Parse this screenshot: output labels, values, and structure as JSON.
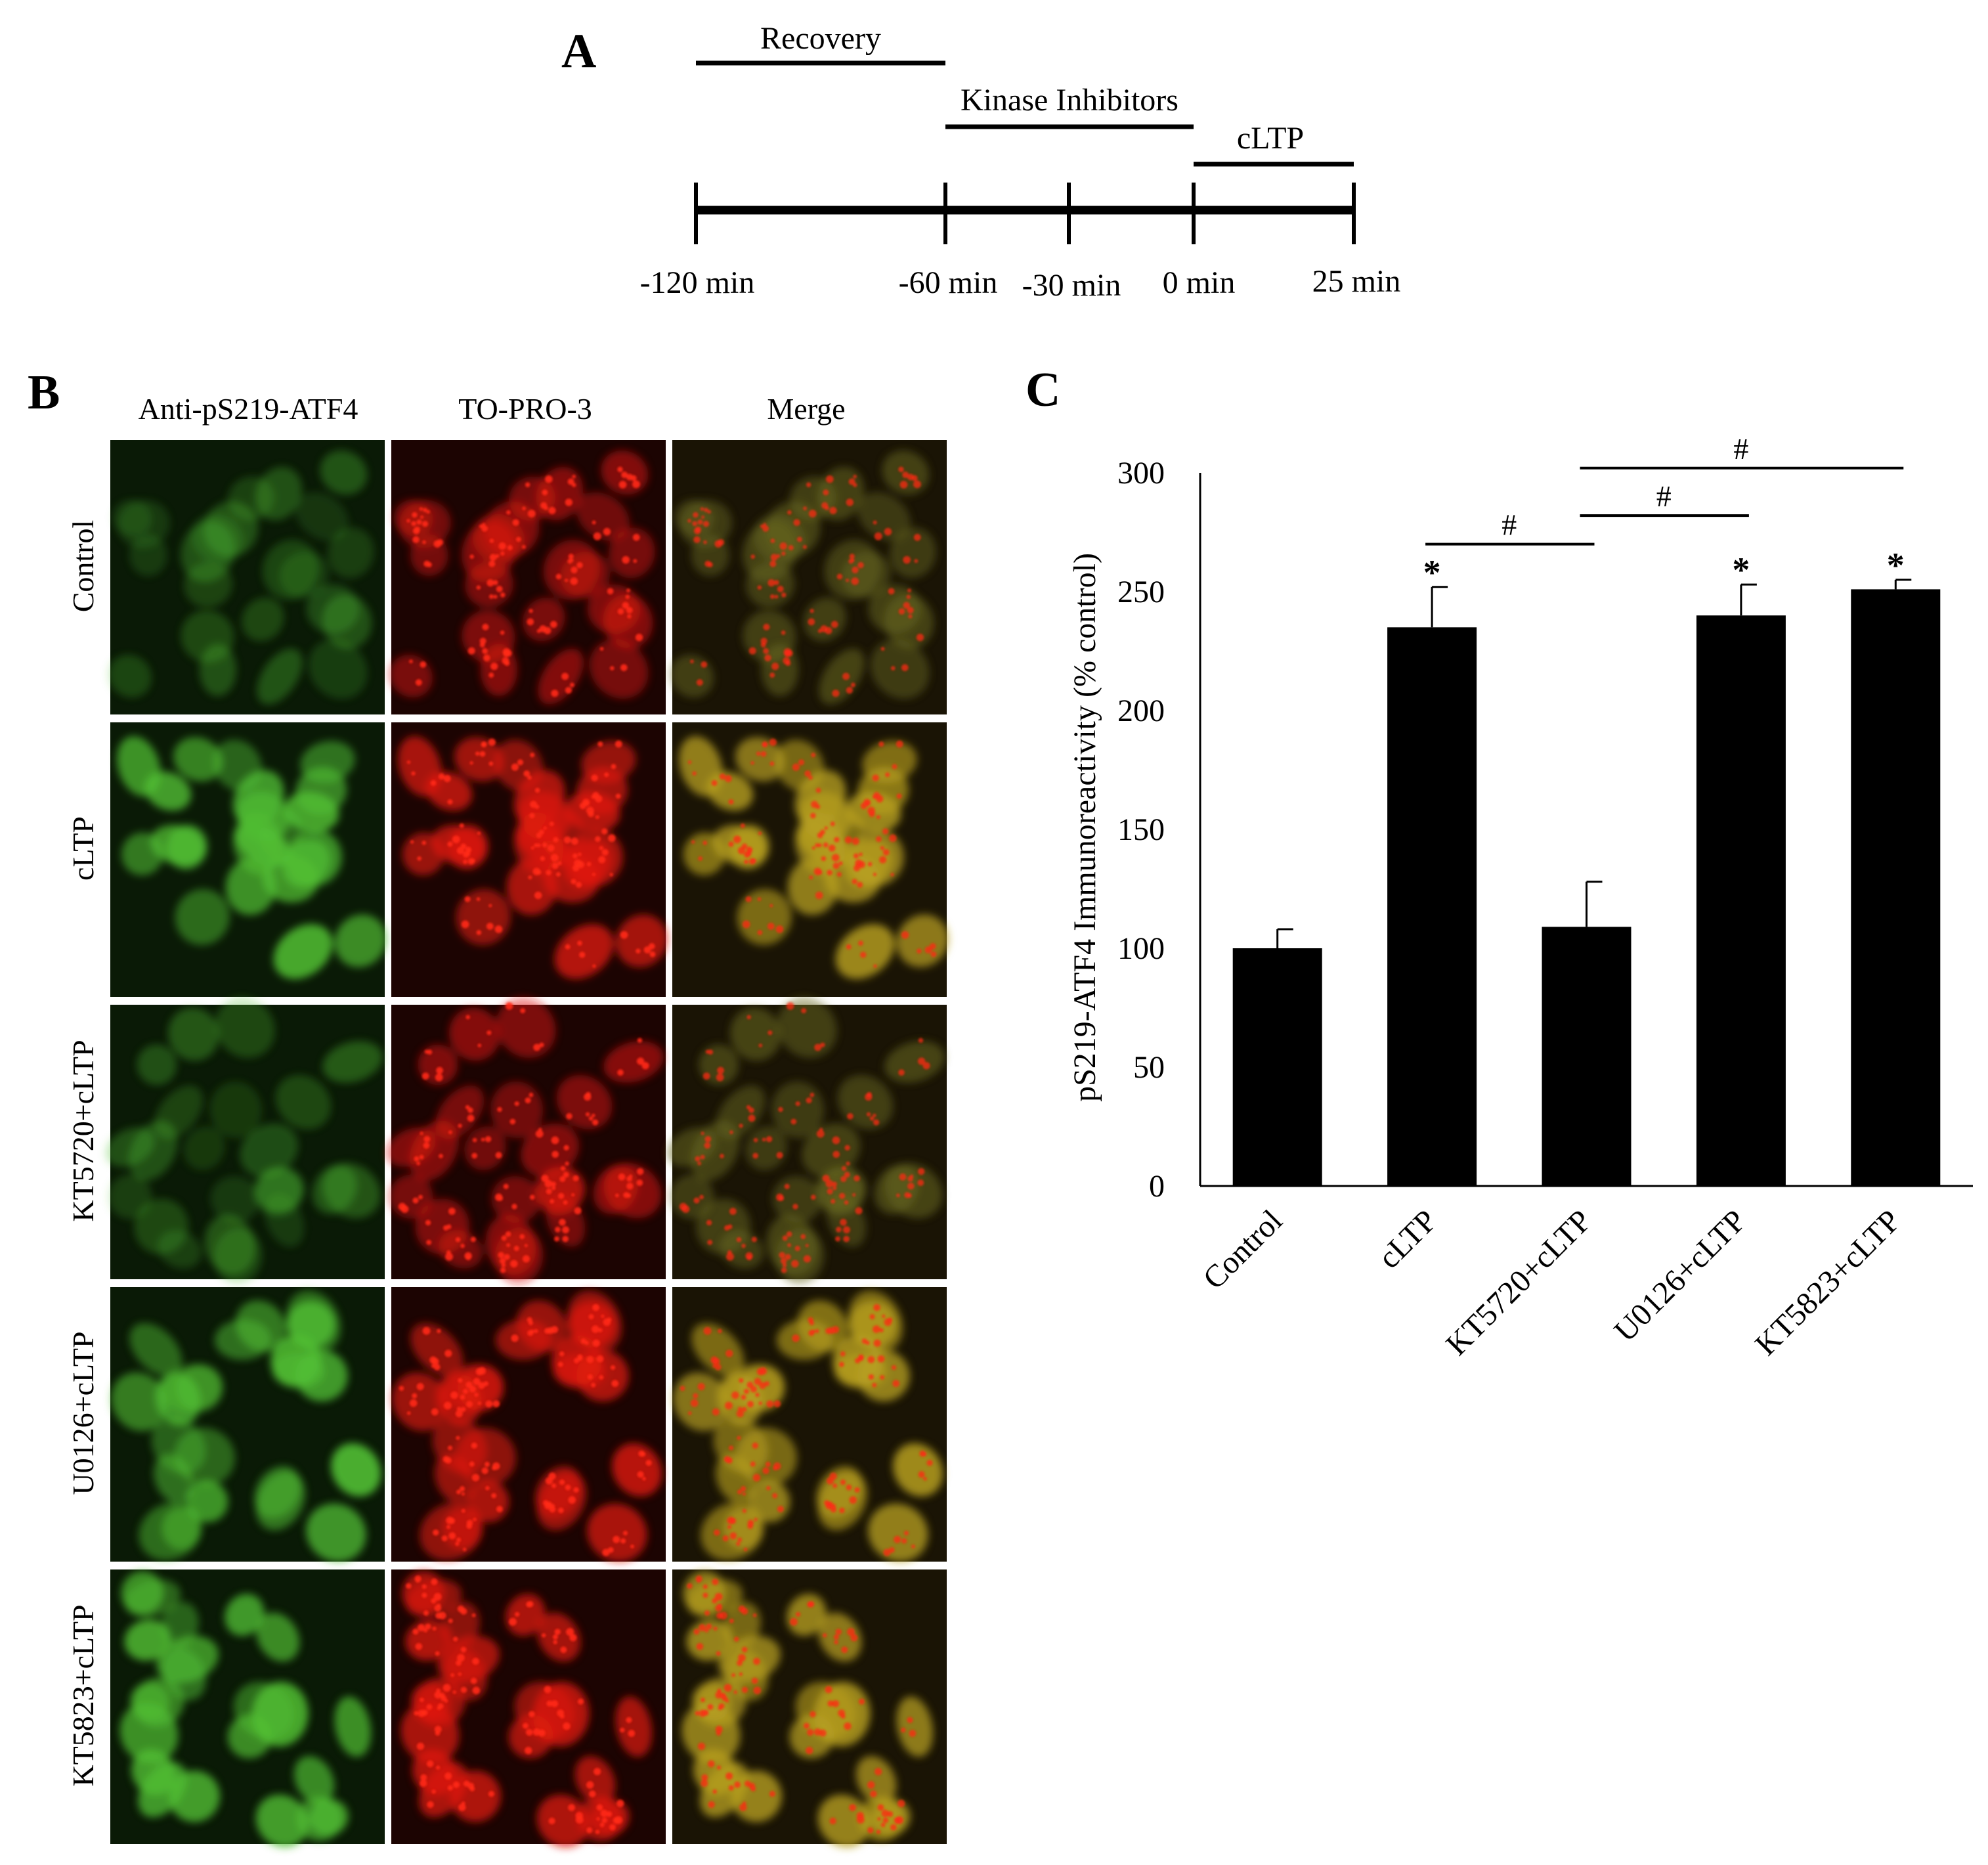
{
  "panel_a": {
    "letter": "A",
    "phases": [
      {
        "label": "Recovery"
      },
      {
        "label": "Kinase Inhibitors"
      },
      {
        "label": "cLTP"
      }
    ],
    "timepoints": [
      "-120 min",
      "-60 min",
      "-30 min",
      "0 min",
      "25 min"
    ]
  },
  "panel_b": {
    "letter": "B",
    "columns": [
      "Anti-pS219-ATF4",
      "TO-PRO-3",
      "Merge"
    ],
    "rows": [
      "Control",
      "cLTP",
      "KT5720+cLTP",
      "U0126+cLTP",
      "KT5823+cLTP"
    ],
    "colors": {
      "green_channel": "#52c034",
      "red_channel": "#e01a10",
      "merge_tint": "#b8a020"
    },
    "row_intensity": [
      0.35,
      0.85,
      0.38,
      0.9,
      0.88
    ]
  },
  "panel_c": {
    "letter": "C"
  },
  "chart_data": {
    "type": "bar",
    "ylabel": "pS219-ATF4 Immunoreactivity (% control)",
    "xlabel": "",
    "ylim": [
      0,
      300
    ],
    "yticks": [
      "0",
      "50",
      "100",
      "150",
      "200",
      "250",
      "300"
    ],
    "categories": [
      "Control",
      "cLTP",
      "KT5720+cLTP",
      "U0126+cLTP",
      "KT5823+cLTP"
    ],
    "values": [
      100,
      235,
      109,
      240,
      251
    ],
    "errors": [
      8,
      17,
      19,
      13,
      4
    ],
    "significance_star": [
      "",
      "*",
      "",
      "*",
      "*"
    ],
    "comparisons": [
      {
        "from": 1,
        "to": 2,
        "label": "#"
      },
      {
        "from": 2,
        "to": 3,
        "label": "#"
      },
      {
        "from": 2,
        "to": 4,
        "label": "#"
      }
    ],
    "bar_color": "#000000",
    "grid": false
  }
}
